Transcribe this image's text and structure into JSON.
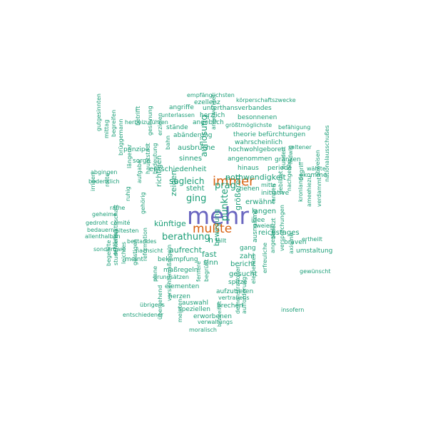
{
  "colors": {
    "primary": "#6a66c0",
    "secondary": "#d8600f",
    "base": "#1b9e77"
  },
  "words": {
    "w1": "mehr",
    "w2": "immer",
    "w3": "mußte",
    "w4": "prag",
    "w5": "berathung",
    "w6": "punkte",
    "w7": "ging",
    "w8": "auflösung",
    "w9": "sogleich",
    "w10": "nothwendigkeit",
    "w11": "künftige",
    "w12": "aufrecht",
    "w13": "zeigen",
    "w14": "größeren",
    "w15": "fast",
    "w16": "reichstages",
    "w17": "entschiedenheit",
    "w18": "ausbruche",
    "w19": "sinnes",
    "w20": "steht",
    "w21": "h",
    "w22": "fällt",
    "w23": "zahl",
    "w24": "bericht",
    "w25": "gesucht",
    "w26": "bewegung",
    "w27": "langen",
    "w28": "erwähnt",
    "w29": "ziehen",
    "w30": "initiative",
    "w31": "idee",
    "w32": "zweier",
    "w33": "gang",
    "w34": "sinn",
    "w35": "maßregeln",
    "w36": "bekämpfung",
    "w37": "meint",
    "w38": "nachsicht",
    "w39": "grundsätzen",
    "w40": "elementen",
    "w41": "herzen",
    "w42": "auswahl",
    "w43": "speziellen",
    "w44": "erworbenen",
    "w45": "verwaltungs",
    "w46": "moralisch",
    "w47": "brechen",
    "w48": "aufzutreten",
    "w49": "vertrauens",
    "w50": "spitze",
    "w51": "begrüßt",
    "w52": "fernere",
    "w53": "angewendet",
    "w54": "hinaus",
    "w55": "periode",
    "w56": "angenommen",
    "w57": "gränzen",
    "w58": "hochwohlgeboren",
    "w59": "wahrscheinlich",
    "w60": "befürchtungen",
    "w61": "theorie",
    "w62": "größtmöglichste",
    "w63": "besonnenen",
    "w64": "unterthansverbandes",
    "w65": "körperschaftszwecke",
    "w66": "empfänglichsten",
    "w67": "ezellenz",
    "w68": "angriffe",
    "w69": "herzlich",
    "w70": "unterlassen",
    "w71": "angeblich",
    "w72": "herbeizuführen",
    "w73": "stände",
    "w74": "abänderung",
    "w75": "bahn",
    "w76": "erzielen",
    "w77": "gesinnung",
    "w78": "betrifft",
    "w79": "prinzipe",
    "w80": "sorge",
    "w81": "brüggemann",
    "w82": "längerer",
    "w83": "ruhig",
    "w84": "aufgabe",
    "w85": "hauptstadt",
    "w86": "bedeutung",
    "w87": "richtigen",
    "w88": "gehörig",
    "w89": "befähigung",
    "w90": "seltener",
    "w91": "wählte",
    "w92": "komme",
    "w93": "abweisen",
    "w94": "verdammt",
    "w95": "nationalausschußes",
    "w96": "amee",
    "w97": "hiezu",
    "w98": "kronlande",
    "w99": "begriff",
    "w100": "nachgeben",
    "w101": "gebildet",
    "w102": "landen",
    "w103": "hundert",
    "w104": "ludwig",
    "w105": "braven",
    "w106": "ertheilt",
    "w107": "umstaltung",
    "w108": "gewünscht",
    "w109": "axiome",
    "w110": "versprechungen",
    "w111": "angestellt",
    "w112": "besetzt",
    "w113": "erfreuliche",
    "w114": "elementes",
    "w115": "insofern",
    "w116": "ausnahme",
    "w117": "mitte",
    "w118": "je",
    "w119": "demonstrationen",
    "w120": "aufforderung",
    "w121": "bezweifelt",
    "w122": "meinten",
    "w123": "vorsichtsmaßregeln",
    "w124": "übergehend",
    "w125": "entschiedener",
    "w126": "übrigens",
    "w127": "plane",
    "w128": "reformation",
    "w129": "geistigen",
    "w130": "leichtes",
    "w131": "erklärten",
    "w132": "begehrte",
    "w133": "studentenwirthschaft",
    "w134": "sonderbare",
    "w135": "bestandes",
    "w136": "allenthalben",
    "w137": "ältesten",
    "w138": "bedauern",
    "w139": "gedroht",
    "w140": "comité",
    "w141": "geheime",
    "w142": "rathe",
    "w143": "irrigen",
    "w144": "rotte",
    "w145": "bedenklich",
    "w146": "abgingen",
    "w147": "gutgesinnten",
    "w148": "mittag",
    "w149": "begreifen"
  }
}
